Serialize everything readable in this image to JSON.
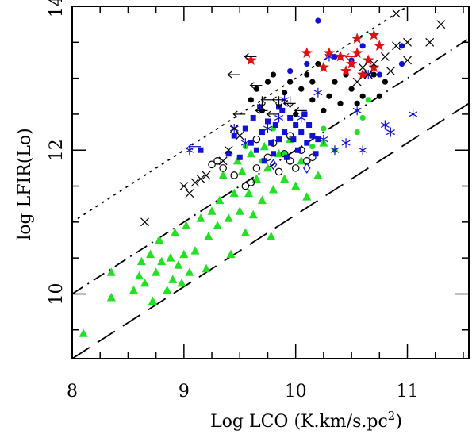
{
  "chart_data": {
    "type": "scatter",
    "xlabel": "Log LCO (K.km/s.pc",
    "xlabel_sup": "2",
    "xlabel_close": ")",
    "ylabel": "log LFIR(Lo)",
    "xlim": [
      8.0,
      11.55
    ],
    "ylim": [
      9.1,
      14.0
    ],
    "x_ticks": [
      8,
      9,
      10,
      11
    ],
    "y_ticks": [
      10,
      12,
      14
    ],
    "grid": false,
    "lines": [
      {
        "style": "dotted",
        "slope": 1.0,
        "intercept": 3.0
      },
      {
        "style": "dashdot",
        "slope": 1.0,
        "intercept": 2.0
      },
      {
        "style": "dashed",
        "slope": 1.0,
        "intercept": 1.1
      }
    ],
    "colors": {
      "green": "#22e022",
      "blue": "#1010d8",
      "red": "#e01010",
      "black": "#000000"
    },
    "series": [
      {
        "marker": "triangle",
        "color": "green",
        "points": [
          [
            8.1,
            9.45
          ],
          [
            8.35,
            10.3
          ],
          [
            8.35,
            9.95
          ],
          [
            8.55,
            10.05
          ],
          [
            8.6,
            10.25
          ],
          [
            8.62,
            10.45
          ],
          [
            8.65,
            10.15
          ],
          [
            8.7,
            10.55
          ],
          [
            8.72,
            9.9
          ],
          [
            8.75,
            10.3
          ],
          [
            8.78,
            10.75
          ],
          [
            8.8,
            10.45
          ],
          [
            8.85,
            10.05
          ],
          [
            8.88,
            10.5
          ],
          [
            8.9,
            10.2
          ],
          [
            8.92,
            10.85
          ],
          [
            8.95,
            10.4
          ],
          [
            8.98,
            10.15
          ],
          [
            9.0,
            10.55
          ],
          [
            9.02,
            10.95
          ],
          [
            9.05,
            10.3
          ],
          [
            9.1,
            10.6
          ],
          [
            9.15,
            11.05
          ],
          [
            9.2,
            10.35
          ],
          [
            9.22,
            10.8
          ],
          [
            9.25,
            11.15
          ],
          [
            9.3,
            10.95
          ],
          [
            9.32,
            11.3
          ],
          [
            9.35,
            11.65
          ],
          [
            9.4,
            11.05
          ],
          [
            9.42,
            10.55
          ],
          [
            9.45,
            11.4
          ],
          [
            9.48,
            11.85
          ],
          [
            9.5,
            11.15
          ],
          [
            9.52,
            11.7
          ],
          [
            9.55,
            10.85
          ],
          [
            9.58,
            11.4
          ],
          [
            9.6,
            11.95
          ],
          [
            9.62,
            11.1
          ],
          [
            9.65,
            11.6
          ],
          [
            9.7,
            11.3
          ],
          [
            9.72,
            12.05
          ],
          [
            9.75,
            11.75
          ],
          [
            9.78,
            10.8
          ],
          [
            9.8,
            11.45
          ],
          [
            9.85,
            11.95
          ],
          [
            9.9,
            11.6
          ],
          [
            9.95,
            12.15
          ],
          [
            10.0,
            11.5
          ],
          [
            10.05,
            11.85
          ],
          [
            10.1,
            11.35
          ],
          [
            10.2,
            11.65
          ],
          [
            10.25,
            12.1
          ]
        ]
      },
      {
        "marker": "circle-filled",
        "color": "green",
        "points": [
          [
            9.7,
            11.85
          ],
          [
            9.9,
            11.95
          ],
          [
            10.05,
            12.25
          ],
          [
            10.15,
            12.05
          ],
          [
            10.25,
            12.3
          ],
          [
            10.35,
            12.0
          ],
          [
            10.55,
            12.25
          ],
          [
            10.6,
            12.45
          ],
          [
            10.65,
            12.7
          ],
          [
            9.55,
            12.05
          ],
          [
            9.8,
            12.3
          ]
        ]
      },
      {
        "marker": "circle-filled",
        "color": "black",
        "points": [
          [
            9.6,
            12.7
          ],
          [
            9.65,
            12.85
          ],
          [
            9.75,
            12.95
          ],
          [
            9.8,
            13.05
          ],
          [
            9.85,
            12.6
          ],
          [
            9.9,
            12.8
          ],
          [
            9.95,
            12.95
          ],
          [
            10.0,
            12.5
          ],
          [
            10.05,
            12.85
          ],
          [
            10.1,
            13.05
          ],
          [
            10.15,
            12.95
          ],
          [
            10.2,
            13.2
          ],
          [
            10.25,
            12.55
          ],
          [
            10.3,
            12.75
          ],
          [
            10.35,
            12.95
          ],
          [
            10.4,
            12.65
          ],
          [
            10.45,
            13.05
          ],
          [
            10.5,
            12.85
          ],
          [
            10.55,
            12.65
          ],
          [
            10.6,
            12.75
          ],
          [
            10.7,
            13.05
          ],
          [
            10.75,
            12.75
          ],
          [
            10.8,
            12.95
          ],
          [
            10.15,
            12.7
          ],
          [
            9.7,
            12.55
          ],
          [
            10.0,
            12.35
          ]
        ]
      },
      {
        "marker": "circle-open",
        "color": "black",
        "points": [
          [
            9.25,
            11.8
          ],
          [
            9.3,
            11.85
          ],
          [
            9.35,
            11.75
          ],
          [
            9.45,
            11.65
          ],
          [
            9.55,
            11.5
          ],
          [
            9.6,
            11.55
          ],
          [
            9.65,
            11.75
          ],
          [
            9.75,
            11.9
          ],
          [
            9.8,
            12.1
          ],
          [
            9.85,
            11.7
          ],
          [
            9.9,
            11.95
          ],
          [
            9.95,
            11.85
          ],
          [
            10.0,
            11.75
          ],
          [
            10.05,
            12.0
          ],
          [
            10.1,
            11.85
          ],
          [
            10.15,
            11.9
          ],
          [
            9.95,
            12.2
          ],
          [
            9.65,
            12.15
          ]
        ]
      },
      {
        "marker": "square",
        "color": "blue",
        "points": [
          [
            9.15,
            12.0
          ],
          [
            9.4,
            11.95
          ],
          [
            9.45,
            12.2
          ],
          [
            9.5,
            11.9
          ],
          [
            9.55,
            12.3
          ],
          [
            9.6,
            12.1
          ],
          [
            9.62,
            12.45
          ],
          [
            9.65,
            12.0
          ],
          [
            9.7,
            12.25
          ],
          [
            9.72,
            11.85
          ],
          [
            9.75,
            12.4
          ],
          [
            9.78,
            12.1
          ],
          [
            9.8,
            11.95
          ],
          [
            9.82,
            12.35
          ],
          [
            9.85,
            12.15
          ],
          [
            9.88,
            12.55
          ],
          [
            9.9,
            12.25
          ],
          [
            9.92,
            11.9
          ],
          [
            9.95,
            12.45
          ],
          [
            9.98,
            12.15
          ],
          [
            10.0,
            12.35
          ],
          [
            10.02,
            12.0
          ],
          [
            10.05,
            12.25
          ],
          [
            10.08,
            12.5
          ],
          [
            10.1,
            12.1
          ],
          [
            10.12,
            12.35
          ],
          [
            10.15,
            12.2
          ],
          [
            10.18,
            11.95
          ],
          [
            10.2,
            12.15
          ],
          [
            9.68,
            12.6
          ],
          [
            9.85,
            12.6
          ]
        ]
      },
      {
        "marker": "circle-filled",
        "color": "blue",
        "points": [
          [
            10.2,
            13.8
          ],
          [
            10.35,
            13.3
          ],
          [
            10.5,
            13.25
          ],
          [
            10.6,
            13.45
          ],
          [
            10.75,
            13.05
          ],
          [
            10.95,
            13.2
          ],
          [
            10.95,
            13.45
          ],
          [
            10.1,
            13.2
          ],
          [
            9.95,
            13.1
          ]
        ]
      },
      {
        "marker": "asterisk",
        "color": "blue",
        "points": [
          [
            9.05,
            12.0
          ],
          [
            9.45,
            12.3
          ],
          [
            9.55,
            12.1
          ],
          [
            9.75,
            12.3
          ],
          [
            9.85,
            12.45
          ],
          [
            10.05,
            12.45
          ],
          [
            10.25,
            12.15
          ],
          [
            10.35,
            12.0
          ],
          [
            10.45,
            12.1
          ],
          [
            10.55,
            12.55
          ],
          [
            10.6,
            12.0
          ],
          [
            10.8,
            12.35
          ],
          [
            10.85,
            12.25
          ],
          [
            11.05,
            12.5
          ],
          [
            10.65,
            13.05
          ],
          [
            10.3,
            13.3
          ],
          [
            10.2,
            12.8
          ],
          [
            9.9,
            12.7
          ]
        ]
      },
      {
        "marker": "star",
        "color": "red",
        "points": [
          [
            9.6,
            13.25
          ],
          [
            10.1,
            13.35
          ],
          [
            10.3,
            13.35
          ],
          [
            10.4,
            13.3
          ],
          [
            10.45,
            13.1
          ],
          [
            10.5,
            13.2
          ],
          [
            10.55,
            13.35
          ],
          [
            10.6,
            13.05
          ],
          [
            10.65,
            13.25
          ],
          [
            10.7,
            13.15
          ],
          [
            10.75,
            13.45
          ],
          [
            10.25,
            13.15
          ],
          [
            10.55,
            13.55
          ],
          [
            10.7,
            13.6
          ]
        ]
      },
      {
        "marker": "cross",
        "color": "black",
        "points": [
          [
            8.65,
            11.0
          ],
          [
            9.0,
            11.5
          ],
          [
            9.05,
            11.4
          ],
          [
            9.1,
            11.55
          ],
          [
            9.15,
            11.6
          ],
          [
            9.2,
            11.65
          ],
          [
            9.35,
            11.85
          ],
          [
            9.4,
            12.0
          ],
          [
            9.45,
            12.3
          ],
          [
            9.5,
            12.2
          ],
          [
            10.55,
            12.95
          ],
          [
            10.6,
            13.15
          ],
          [
            10.65,
            13.05
          ],
          [
            10.7,
            13.2
          ],
          [
            10.8,
            13.3
          ],
          [
            10.85,
            13.1
          ],
          [
            10.9,
            13.45
          ],
          [
            11.0,
            13.5
          ],
          [
            11.0,
            13.25
          ],
          [
            11.2,
            13.5
          ],
          [
            11.3,
            13.75
          ],
          [
            10.9,
            13.9
          ]
        ]
      },
      {
        "marker": "arrow-left",
        "color": "black",
        "points": [
          [
            9.5,
            13.05
          ],
          [
            9.65,
            13.3
          ],
          [
            9.7,
            12.9
          ],
          [
            9.75,
            12.55
          ],
          [
            9.8,
            12.7
          ],
          [
            9.85,
            12.5
          ],
          [
            9.9,
            12.7
          ],
          [
            10.0,
            12.65
          ],
          [
            10.1,
            12.55
          ],
          [
            9.55,
            12.5
          ]
        ]
      },
      {
        "marker": "arrow-left",
        "color": "blue",
        "points": [
          [
            9.15,
            12.05
          ]
        ]
      },
      {
        "marker": "arrow-left",
        "color": "red",
        "points": [
          [
            10.55,
            13.3
          ]
        ]
      },
      {
        "marker": "arrow-down",
        "color": "black",
        "points": [
          [
            9.7,
            12.75
          ],
          [
            9.85,
            12.75
          ],
          [
            9.95,
            12.75
          ]
        ]
      },
      {
        "marker": "diamond-open",
        "color": "blue",
        "points": [
          [
            9.8,
            11.8
          ],
          [
            10.1,
            11.75
          ]
        ]
      }
    ]
  }
}
